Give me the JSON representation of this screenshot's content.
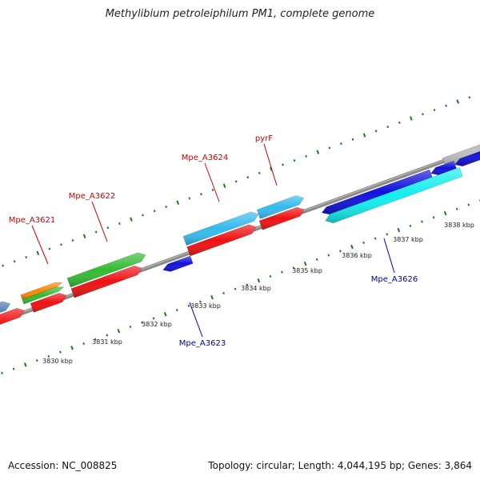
{
  "title": "Methylibium petroleiphilum PM1, complete genome",
  "footer": {
    "accession": "Accession: NC_008825",
    "summary": "Topology: circular; Length: 4,044,195 bp; Genes: 3,864"
  },
  "colors": {
    "backbone": "#8a8a8a",
    "tick": "#1a7a1a",
    "label_forward": "#cc0000",
    "label_reverse": "#0000aa",
    "cds_red": "#ee1111",
    "cds_green": "#33bb33",
    "cds_sky": "#33bbee",
    "cds_blue": "#1111dd",
    "cds_cyan": "#11eeee",
    "cds_steel": "#4a7ab0",
    "cds_orange": "#ff8800",
    "cds_gray": "#c0c0c0"
  },
  "ticks": [
    {
      "label": "3830 kbp"
    },
    {
      "label": "3831 kbp"
    },
    {
      "label": "3832 kbp"
    },
    {
      "label": "3833 kbp"
    },
    {
      "label": "3834 kbp"
    },
    {
      "label": "3835 kbp"
    },
    {
      "label": "3836 kbp"
    },
    {
      "label": "3837 kbp"
    },
    {
      "label": "3838 kbp"
    }
  ],
  "gene_labels": [
    {
      "text": "Mpe_A3621",
      "strand": "forward"
    },
    {
      "text": "Mpe_A3622",
      "strand": "forward"
    },
    {
      "text": "Mpe_A3624",
      "strand": "forward"
    },
    {
      "text": "pyrF",
      "strand": "forward"
    },
    {
      "text": "Mpe_A3623",
      "strand": "reverse"
    },
    {
      "text": "Mpe_A3626",
      "strand": "reverse"
    }
  ]
}
